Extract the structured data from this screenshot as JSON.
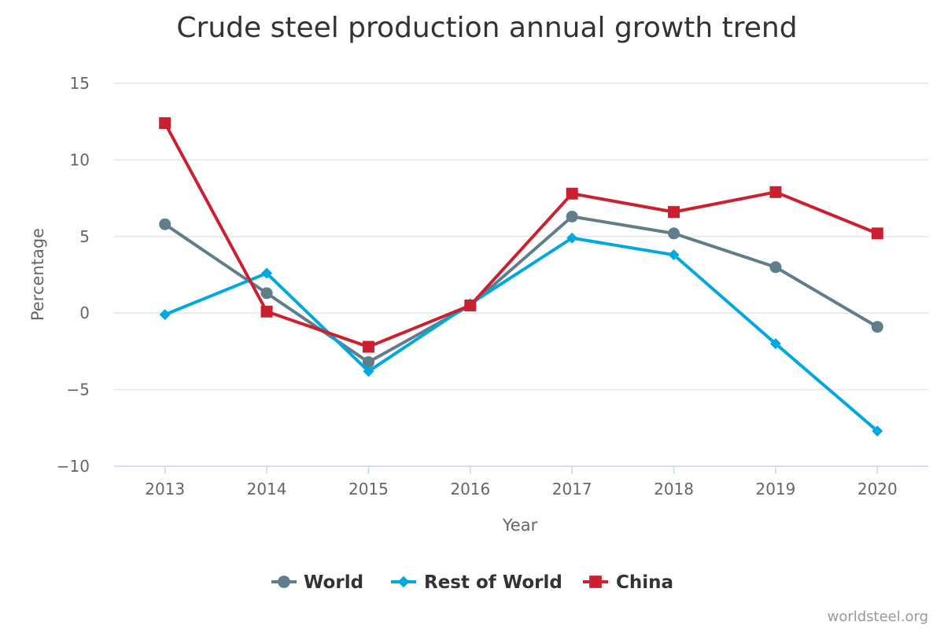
{
  "chart_data": {
    "type": "line",
    "title": "Crude steel production annual growth trend",
    "xlabel": "Year",
    "ylabel": "Percentage",
    "categories": [
      "2013",
      "2014",
      "2015",
      "2016",
      "2017",
      "2018",
      "2019",
      "2020"
    ],
    "ylim": [
      -10,
      15
    ],
    "yticks": [
      15,
      10,
      5,
      0,
      -5,
      -10
    ],
    "ytick_labels": [
      "15",
      "10",
      "5",
      "0",
      "−5",
      "−10"
    ],
    "grid": true,
    "legend_position": "bottom-center",
    "series": [
      {
        "name": "World",
        "color": "#607d8b",
        "marker": "circle",
        "values": [
          5.8,
          1.3,
          -3.2,
          0.5,
          6.3,
          5.2,
          3.0,
          -0.9
        ]
      },
      {
        "name": "Rest of World",
        "color": "#00a8e1",
        "marker": "diamond",
        "values": [
          -0.1,
          2.6,
          -3.8,
          0.6,
          4.9,
          3.8,
          -2.0,
          -7.7
        ]
      },
      {
        "name": "China",
        "color": "#cb2030",
        "marker": "square",
        "values": [
          12.4,
          0.1,
          -2.2,
          0.5,
          7.8,
          6.6,
          7.9,
          5.2
        ]
      }
    ],
    "credit": "worldsteel.org"
  }
}
